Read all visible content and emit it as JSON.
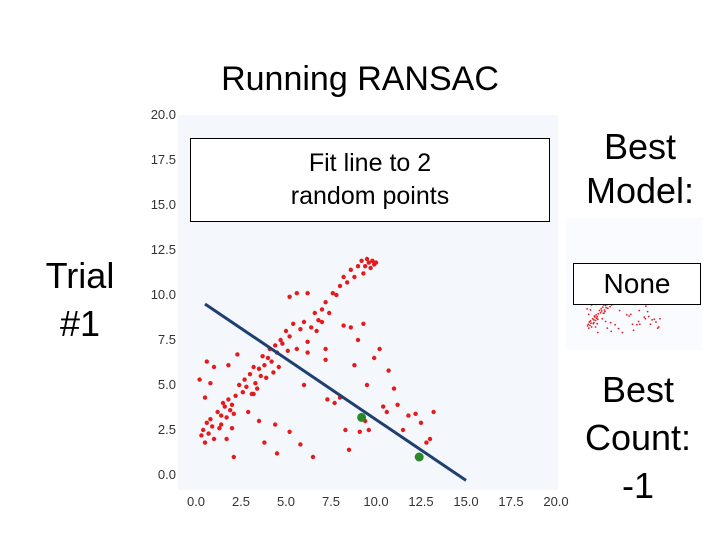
{
  "slide": {
    "title": "Running RANSAC",
    "trial_label_line1": "Trial",
    "trial_label_line2": "#1",
    "fit_box_line1": "Fit line to 2",
    "fit_box_line2": "random points",
    "best_model_line1": "Best",
    "best_model_line2": "Model:",
    "best_model_value": "None",
    "best_count_line1": "Best",
    "best_count_line2": "Count:",
    "best_count_value": "-1"
  },
  "colors": {
    "points": "#e41a1c",
    "line": "#1f3f6e",
    "sample_points": "#2a8a2a",
    "plot_bg": "#f4f7fc"
  },
  "chart_data": {
    "type": "scatter",
    "title": "",
    "xlabel": "",
    "ylabel": "",
    "xlim": [
      0,
      20
    ],
    "ylim": [
      0,
      20
    ],
    "x_ticks": [
      "0.0",
      "2.5",
      "5.0",
      "7.5",
      "10.0",
      "12.5",
      "15.0",
      "17.5",
      "20.0"
    ],
    "y_ticks": [
      "0.0",
      "2.5",
      "5.0",
      "7.5",
      "10.0",
      "12.5",
      "15.0",
      "17.5",
      "20.0"
    ],
    "grid": false,
    "points": [
      [
        0.3,
        2.2
      ],
      [
        0.4,
        2.5
      ],
      [
        0.5,
        1.8
      ],
      [
        0.6,
        2.9
      ],
      [
        0.7,
        2.3
      ],
      [
        0.8,
        3.1
      ],
      [
        0.9,
        2.7
      ],
      [
        1.0,
        2.0
      ],
      [
        1.2,
        3.5
      ],
      [
        1.3,
        2.6
      ],
      [
        1.4,
        3.3
      ],
      [
        1.5,
        4.0
      ],
      [
        1.6,
        3.8
      ],
      [
        1.7,
        3.2
      ],
      [
        1.8,
        4.2
      ],
      [
        1.9,
        3.6
      ],
      [
        2.0,
        3.9
      ],
      [
        2.1,
        3.4
      ],
      [
        2.2,
        4.4
      ],
      [
        2.0,
        2.6
      ],
      [
        1.7,
        2.0
      ],
      [
        2.4,
        5.0
      ],
      [
        2.6,
        4.6
      ],
      [
        2.7,
        5.3
      ],
      [
        2.8,
        4.9
      ],
      [
        2.9,
        3.5
      ],
      [
        3.0,
        5.6
      ],
      [
        3.1,
        4.5
      ],
      [
        3.2,
        6.0
      ],
      [
        3.3,
        5.1
      ],
      [
        3.4,
        4.8
      ],
      [
        3.5,
        5.9
      ],
      [
        3.6,
        5.5
      ],
      [
        3.7,
        6.6
      ],
      [
        3.8,
        6.1
      ],
      [
        3.9,
        5.4
      ],
      [
        4.0,
        6.5
      ],
      [
        4.1,
        7.0
      ],
      [
        4.2,
        6.3
      ],
      [
        4.3,
        5.7
      ],
      [
        4.4,
        7.2
      ],
      [
        4.5,
        6.8
      ],
      [
        4.6,
        6.0
      ],
      [
        4.7,
        7.5
      ],
      [
        4.8,
        7.3
      ],
      [
        5.0,
        8.0
      ],
      [
        5.1,
        6.9
      ],
      [
        5.2,
        7.7
      ],
      [
        5.4,
        8.4
      ],
      [
        5.6,
        7.0
      ],
      [
        5.8,
        8.1
      ],
      [
        6.0,
        8.5
      ],
      [
        6.2,
        7.4
      ],
      [
        6.4,
        8.2
      ],
      [
        6.6,
        9.0
      ],
      [
        6.8,
        8.6
      ],
      [
        7.0,
        9.2
      ],
      [
        7.2,
        9.6
      ],
      [
        7.4,
        9.0
      ],
      [
        7.6,
        10.1
      ],
      [
        7.8,
        10.0
      ],
      [
        8.0,
        10.5
      ],
      [
        8.2,
        11.0
      ],
      [
        8.4,
        10.7
      ],
      [
        8.6,
        11.4
      ],
      [
        8.8,
        11.0
      ],
      [
        9.0,
        11.6
      ],
      [
        9.2,
        11.9
      ],
      [
        9.4,
        11.6
      ],
      [
        9.6,
        11.8
      ],
      [
        9.8,
        11.9
      ],
      [
        9.9,
        11.7
      ],
      [
        9.3,
        11.2
      ],
      [
        9.5,
        12.0
      ],
      [
        9.7,
        11.5
      ],
      [
        10.0,
        11.8
      ],
      [
        0.2,
        5.3
      ],
      [
        0.8,
        5.1
      ],
      [
        0.6,
        6.3
      ],
      [
        0.5,
        4.3
      ],
      [
        1.4,
        2.8
      ],
      [
        1.8,
        6.1
      ],
      [
        2.1,
        1.0
      ],
      [
        3.8,
        1.8
      ],
      [
        3.2,
        4.5
      ],
      [
        4.4,
        2.8
      ],
      [
        5.2,
        2.4
      ],
      [
        5.2,
        9.9
      ],
      [
        5.6,
        10.1
      ],
      [
        6.2,
        10.1
      ],
      [
        6.2,
        6.8
      ],
      [
        6.7,
        8.0
      ],
      [
        7.0,
        8.5
      ],
      [
        7.2,
        6.4
      ],
      [
        7.7,
        4.0
      ],
      [
        8.0,
        4.3
      ],
      [
        8.3,
        2.5
      ],
      [
        8.8,
        6.1
      ],
      [
        9.0,
        7.5
      ],
      [
        9.3,
        8.4
      ],
      [
        8.5,
        1.4
      ],
      [
        9.1,
        2.4
      ],
      [
        9.6,
        2.5
      ],
      [
        9.9,
        6.5
      ],
      [
        10.2,
        7.0
      ],
      [
        10.6,
        3.5
      ],
      [
        10.7,
        5.8
      ],
      [
        11.0,
        4.8
      ],
      [
        11.2,
        3.9
      ],
      [
        11.8,
        3.3
      ],
      [
        12.2,
        3.4
      ],
      [
        12.5,
        2.9
      ],
      [
        12.8,
        1.8
      ],
      [
        13.2,
        3.5
      ],
      [
        13.0,
        2.0
      ],
      [
        6.0,
        5.0
      ],
      [
        7.3,
        4.2
      ],
      [
        8.2,
        8.3
      ],
      [
        6.5,
        1.0
      ],
      [
        5.8,
        1.7
      ],
      [
        9.5,
        5.0
      ],
      [
        10.4,
        3.8
      ],
      [
        11.5,
        2.5
      ],
      [
        1.0,
        6.0
      ],
      [
        2.3,
        6.7
      ],
      [
        3.5,
        3.0
      ],
      [
        4.5,
        1.2
      ],
      [
        7.2,
        7.0
      ],
      [
        8.6,
        8.2
      ],
      [
        9.4,
        3.0
      ]
    ],
    "fit_line": {
      "x": [
        0.5,
        15.0
      ],
      "y": [
        9.5,
        -0.3
      ]
    },
    "sample_points": [
      [
        9.2,
        3.2
      ],
      [
        12.4,
        1.0
      ]
    ]
  }
}
